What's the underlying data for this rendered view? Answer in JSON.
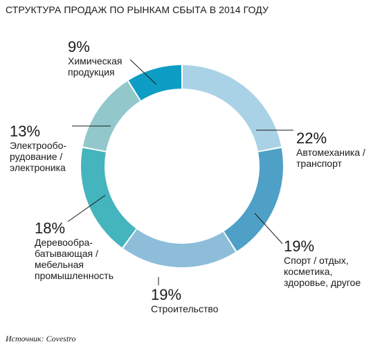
{
  "chart_data": {
    "type": "pie",
    "title": "СТРУКТУРА ПРОДАЖ ПО РЫНКАМ СБЫТА В 2014 ГОДУ",
    "categories": [
      "Автомеханика / транспорт",
      "Спорт / отдых, косметика, здоровье, другое",
      "Строительство",
      "Деревообрабатывающая / мебельная промышленность",
      "Электрооборудование / электроника",
      "Химическая продукция"
    ],
    "values": [
      22,
      19,
      19,
      18,
      13,
      9
    ],
    "units": "%",
    "colors": [
      "#a9d2e6",
      "#4fa0c7",
      "#8dbdd9",
      "#44b4bd",
      "#92c8cb",
      "#0e9dc4"
    ],
    "slices": [
      {
        "pct": "22%",
        "name": "Автомеханика /\nтранспорт"
      },
      {
        "pct": "19%",
        "name": "Спорт / отдых,\nкосметика,\nздоровье, другое"
      },
      {
        "pct": "19%",
        "name": "Строительство"
      },
      {
        "pct": "18%",
        "name": "Деревообра-\nбатывающая /\nмебельная\nпромышленность"
      },
      {
        "pct": "13%",
        "name": "Электрообо-\nрудование /\nэлектроника"
      },
      {
        "pct": "9%",
        "name": "Химическая\nпродукция"
      }
    ]
  },
  "source": "Источник: Covestro"
}
